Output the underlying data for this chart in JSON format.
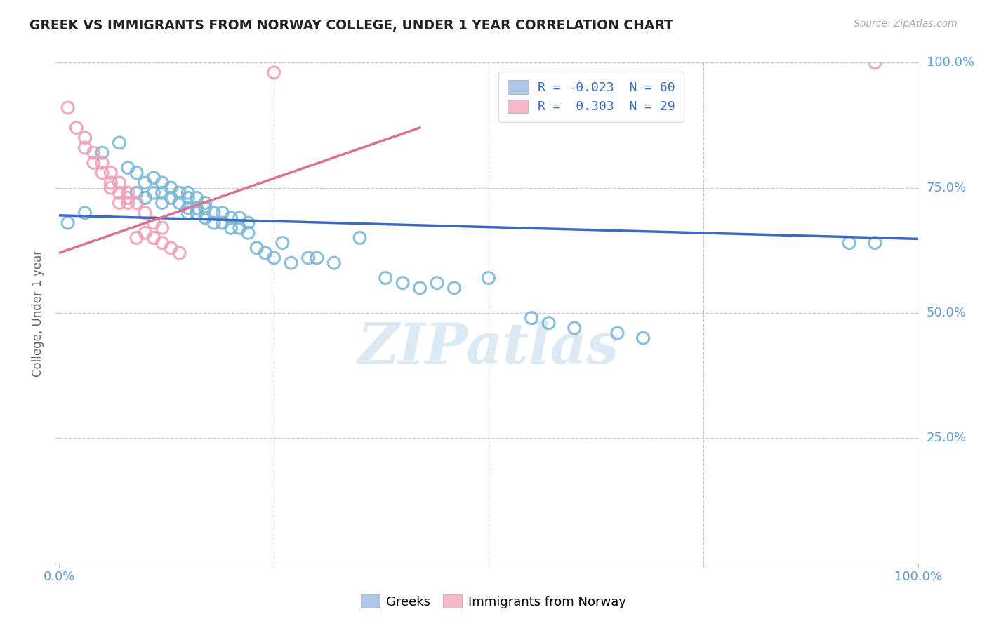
{
  "title": "GREEK VS IMMIGRANTS FROM NORWAY COLLEGE, UNDER 1 YEAR CORRELATION CHART",
  "source": "Source: ZipAtlas.com",
  "ylabel": "College, Under 1 year",
  "watermark": "ZIPatlas",
  "xlim": [
    0.0,
    1.0
  ],
  "ylim": [
    0.0,
    1.0
  ],
  "legend1_label": "R = -0.023  N = 60",
  "legend2_label": "R =  0.303  N = 29",
  "legend1_color": "#aec6e8",
  "legend2_color": "#f4b8c8",
  "scatter_blue_color": "#7bb8d8",
  "scatter_pink_color": "#f0a0b8",
  "line_blue_color": "#3a6bbf",
  "line_pink_color": "#e07090",
  "axis_color": "#5b9bd5",
  "grid_color": "#c8c8c8",
  "right_ytick_labels": [
    "100.0%",
    "75.0%",
    "50.0%",
    "25.0%"
  ],
  "right_ytick_positions": [
    1.0,
    0.75,
    0.5,
    0.25
  ],
  "blue_x": [
    0.01,
    0.03,
    0.05,
    0.07,
    0.08,
    0.09,
    0.09,
    0.1,
    0.1,
    0.11,
    0.11,
    0.12,
    0.12,
    0.12,
    0.13,
    0.13,
    0.14,
    0.14,
    0.15,
    0.15,
    0.15,
    0.15,
    0.16,
    0.16,
    0.16,
    0.17,
    0.17,
    0.17,
    0.18,
    0.18,
    0.19,
    0.19,
    0.2,
    0.2,
    0.21,
    0.21,
    0.22,
    0.22,
    0.23,
    0.24,
    0.25,
    0.26,
    0.27,
    0.29,
    0.3,
    0.32,
    0.35,
    0.38,
    0.4,
    0.42,
    0.44,
    0.46,
    0.5,
    0.55,
    0.57,
    0.6,
    0.65,
    0.68,
    0.92,
    0.95
  ],
  "blue_y": [
    0.68,
    0.7,
    0.82,
    0.84,
    0.79,
    0.78,
    0.74,
    0.76,
    0.73,
    0.77,
    0.74,
    0.76,
    0.74,
    0.72,
    0.75,
    0.73,
    0.74,
    0.72,
    0.74,
    0.73,
    0.71,
    0.7,
    0.73,
    0.71,
    0.7,
    0.72,
    0.71,
    0.69,
    0.7,
    0.68,
    0.7,
    0.68,
    0.69,
    0.67,
    0.69,
    0.67,
    0.68,
    0.66,
    0.63,
    0.62,
    0.61,
    0.64,
    0.6,
    0.61,
    0.61,
    0.6,
    0.65,
    0.57,
    0.56,
    0.55,
    0.56,
    0.55,
    0.57,
    0.49,
    0.48,
    0.47,
    0.46,
    0.45,
    0.64,
    0.64
  ],
  "pink_x": [
    0.01,
    0.02,
    0.03,
    0.03,
    0.04,
    0.04,
    0.05,
    0.05,
    0.06,
    0.06,
    0.06,
    0.07,
    0.07,
    0.07,
    0.08,
    0.08,
    0.08,
    0.09,
    0.09,
    0.1,
    0.1,
    0.11,
    0.11,
    0.12,
    0.12,
    0.13,
    0.14,
    0.25,
    0.95
  ],
  "pink_y": [
    0.91,
    0.87,
    0.85,
    0.83,
    0.82,
    0.8,
    0.8,
    0.78,
    0.78,
    0.76,
    0.75,
    0.76,
    0.74,
    0.72,
    0.74,
    0.73,
    0.72,
    0.72,
    0.65,
    0.7,
    0.66,
    0.68,
    0.65,
    0.67,
    0.64,
    0.63,
    0.62,
    0.98,
    1.0
  ],
  "blue_trend_x": [
    0.0,
    1.0
  ],
  "blue_trend_y": [
    0.695,
    0.648
  ],
  "pink_trend_x": [
    0.0,
    0.42
  ],
  "pink_trend_y": [
    0.62,
    0.87
  ]
}
